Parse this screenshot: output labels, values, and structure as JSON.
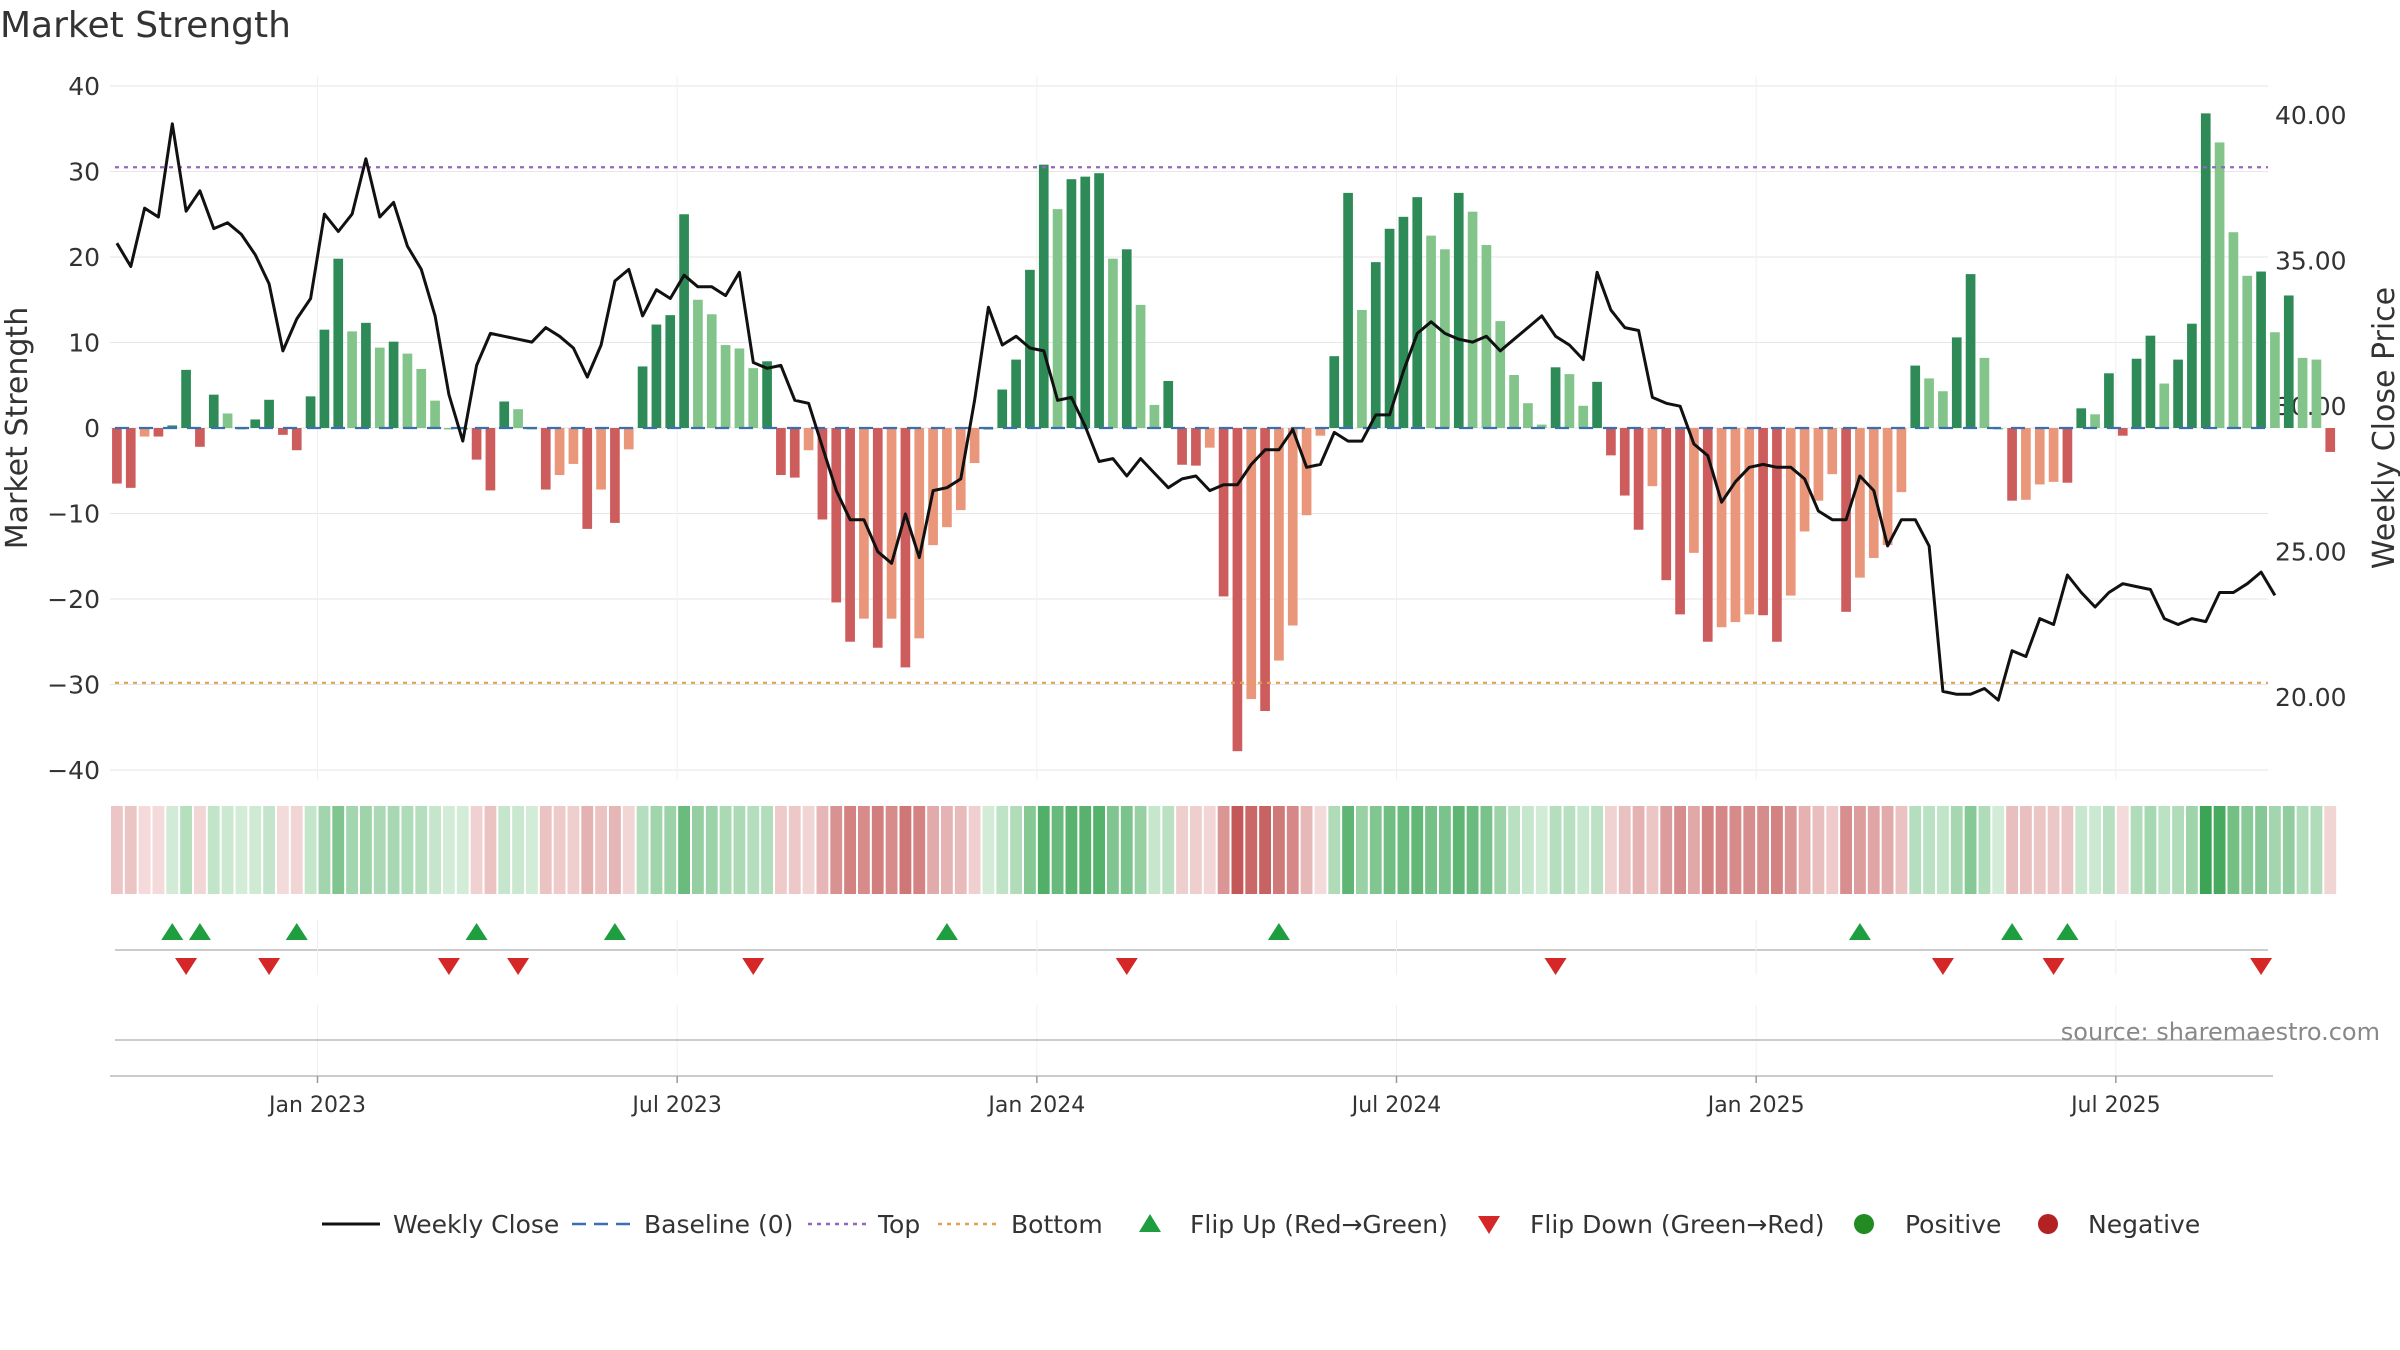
{
  "chart_data": {
    "type": "bar+line",
    "title": "Market Strength",
    "ylabel_left": "Market Strength",
    "ylabel_right": "Weekly Close Price",
    "ylim_left": [
      -40,
      40
    ],
    "ylim_right": [
      17.5,
      41.0
    ],
    "left_ticks": [
      "40",
      "30",
      "20",
      "10",
      "0",
      "−10",
      "−20",
      "−30",
      "−40"
    ],
    "right_ticks": [
      "40.00",
      "35.00",
      "30.00",
      "25.00",
      "20.00"
    ],
    "x_tick_labels": [
      "Jan 2023",
      "Jul 2023",
      "Jan 2024",
      "Jul 2024",
      "Jan 2025",
      "Jul 2025"
    ],
    "top_threshold": 30.5,
    "bottom_threshold": -29.8,
    "weeks": 156,
    "x_tick_weeks": [
      14.5,
      40.5,
      66.5,
      92.5,
      118.5,
      144.5
    ],
    "strength": [
      -6.5,
      -7,
      -1,
      -1,
      0.3,
      6.8,
      -2.2,
      3.9,
      1.7,
      0,
      1,
      3.3,
      -0.8,
      -2.6,
      3.7,
      11.5,
      19.8,
      11.3,
      12.3,
      9.4,
      10.1,
      8.7,
      6.9,
      3.2,
      0,
      0,
      -3.7,
      -7.3,
      3.1,
      2.2,
      0,
      -7.2,
      -5.5,
      -4.2,
      -11.8,
      -7.2,
      -11.1,
      -2.5,
      7.2,
      12.1,
      13.2,
      25,
      15,
      13.3,
      9.7,
      9.3,
      7,
      7.8,
      -5.5,
      -5.8,
      -2.6,
      -10.7,
      -20.4,
      -25,
      -22.3,
      -25.7,
      -22.3,
      -28,
      -24.6,
      -13.7,
      -11.6,
      -9.6,
      -4.1,
      0,
      4.5,
      8,
      18.5,
      30.8,
      25.6,
      29.1,
      29.4,
      29.8,
      19.8,
      20.9,
      14.4,
      2.7,
      5.5,
      -4.3,
      -4.4,
      -2.3,
      -19.7,
      -37.8,
      -31.7,
      -33.1,
      -27.2,
      -23.1,
      -10.2,
      -0.9,
      8.4,
      27.5,
      13.8,
      19.4,
      23.3,
      24.7,
      27,
      22.5,
      20.9,
      27.5,
      25.3,
      21.4,
      12.5,
      6.2,
      2.9,
      0.4,
      7.1,
      6.3,
      2.6,
      5.4,
      -3.2,
      -7.9,
      -11.9,
      -6.8,
      -17.8,
      -21.8,
      -14.6,
      -25,
      -23.3,
      -22.7,
      -21.8,
      -21.9,
      -25,
      -19.6,
      -12.1,
      -8.5,
      -5.4,
      -21.5,
      -17.5,
      -15.2,
      -13.7,
      -7.5,
      7.3,
      5.8,
      4.3,
      10.6,
      18,
      8.2,
      0,
      -8.5,
      -8.4,
      -6.6,
      -6.3,
      -6.4,
      2.3,
      1.6,
      6.4,
      -0.9,
      8.1,
      10.8,
      5.2,
      8,
      12.2,
      36.8,
      33.4,
      22.9,
      17.8,
      18.3,
      11.2,
      15.5,
      8.2,
      8,
      -2.8
    ],
    "close": [
      35.6,
      34.8,
      36.8,
      36.5,
      39.7,
      36.7,
      37.4,
      36.1,
      36.3,
      35.9,
      35.2,
      34.2,
      31.9,
      33,
      33.7,
      36.6,
      36,
      36.6,
      38.5,
      36.5,
      37,
      35.5,
      34.7,
      33.1,
      30.4,
      28.8,
      31.4,
      32.5,
      32.4,
      32.3,
      32.2,
      32.7,
      32.4,
      32,
      31,
      32.1,
      34.3,
      34.7,
      33.1,
      34,
      33.7,
      34.5,
      34.1,
      34.1,
      33.8,
      34.6,
      31.5,
      31.3,
      31.4,
      30.2,
      30.1,
      28.6,
      27.1,
      26.1,
      26.1,
      25,
      24.6,
      26.3,
      24.8,
      27.1,
      27.2,
      27.5,
      30.2,
      33.4,
      32.1,
      32.4,
      32,
      31.9,
      30.2,
      30.3,
      29.3,
      28.1,
      28.2,
      27.6,
      28.2,
      27.7,
      27.2,
      27.5,
      27.6,
      27.1,
      27.3,
      27.3,
      28,
      28.5,
      28.5,
      29.2,
      27.9,
      28,
      29.1,
      28.8,
      28.8,
      29.7,
      29.7,
      31.2,
      32.5,
      32.9,
      32.5,
      32.3,
      32.2,
      32.4,
      31.9,
      32.3,
      32.7,
      33.1,
      32.4,
      32.1,
      31.6,
      34.6,
      33.3,
      32.7,
      32.6,
      30.3,
      30.1,
      30,
      28.7,
      28.3,
      26.7,
      27.4,
      27.9,
      28,
      27.9,
      27.9,
      27.5,
      26.4,
      26.1,
      26.1,
      27.6,
      27.1,
      25.2,
      26.1,
      26.1,
      25.2,
      20.2,
      20.1,
      20.1,
      20.3,
      19.9,
      21.6,
      21.4,
      22.7,
      22.5,
      24.2,
      23.6,
      23.1,
      23.6,
      23.9,
      23.8,
      23.7,
      22.7,
      22.5,
      22.7,
      22.6,
      23.6,
      23.6,
      23.9,
      24.3,
      23.5
    ],
    "flip_up_weeks": [
      4,
      6,
      13,
      26,
      36,
      60,
      84,
      126,
      137,
      141
    ],
    "flip_down_weeks": [
      5,
      11,
      24,
      29,
      46,
      73,
      104,
      132,
      140,
      155
    ],
    "legend": [
      "Weekly Close",
      "Baseline (0)",
      "Top",
      "Bottom",
      "Flip Up (Red→Green)",
      "Flip Down (Green→Red)",
      "Positive",
      "Negative"
    ],
    "source": "source: sharemaestro.com",
    "colors": {
      "pos_dark": "#2e8b57",
      "pos_light": "#82c48a",
      "neg_dark": "#cd5c5c",
      "neg_light": "#e9967a",
      "close_line": "#111111",
      "baseline": "#3a6fb0",
      "top": "#9467bd",
      "bottom": "#e3a04f",
      "flip_up": "#1e9e3e",
      "flip_down": "#d62728",
      "positive_dot": "#228b22",
      "negative_dot": "#b22222"
    }
  }
}
